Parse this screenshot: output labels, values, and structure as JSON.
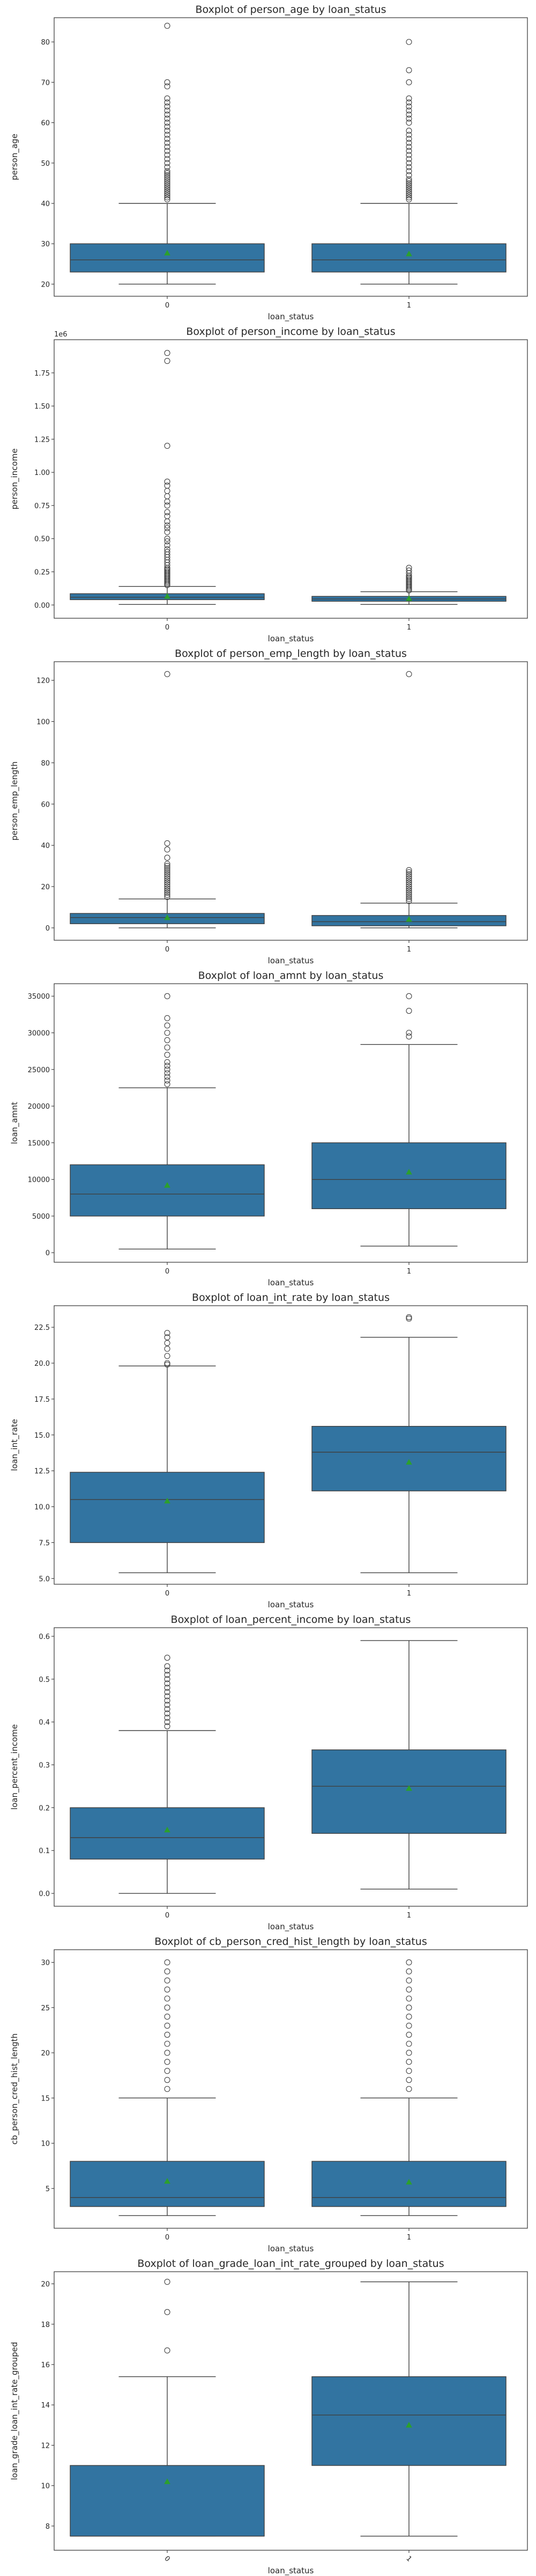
{
  "colors": {
    "box": "#3274a1",
    "mean": "#2ca02c",
    "line": "#404040",
    "frame": "#333333"
  },
  "chart_data": [
    {
      "type": "boxplot",
      "title": "Boxplot of person_age by loan_status",
      "xlabel": "loan_status",
      "ylabel": "person_age",
      "categories": [
        "0",
        "1"
      ],
      "ylim": [
        17,
        86
      ],
      "yticks": [
        20,
        30,
        40,
        50,
        60,
        70,
        80
      ],
      "ytick_labels": [
        "20",
        "30",
        "40",
        "50",
        "60",
        "70",
        "80"
      ],
      "boxes": [
        {
          "q1": 23,
          "median": 26,
          "q3": 30,
          "whislo": 20,
          "whishi": 40,
          "mean": 27.7,
          "fliers": [
            41,
            41.5,
            42,
            42.5,
            43,
            43.5,
            44,
            44.5,
            45,
            45.5,
            46,
            46.5,
            47,
            47.5,
            48,
            49,
            50,
            51,
            52,
            53,
            54,
            55,
            56,
            57,
            58,
            59,
            60,
            61,
            62,
            63,
            64,
            65,
            66,
            69,
            70,
            84
          ]
        },
        {
          "q1": 23,
          "median": 26,
          "q3": 30,
          "whislo": 20,
          "whishi": 40,
          "mean": 27.5,
          "fliers": [
            41,
            41.5,
            42,
            42.5,
            43,
            43.5,
            44,
            44.5,
            45,
            45.5,
            46,
            47,
            48,
            49,
            50,
            51,
            52,
            53,
            54,
            55,
            56,
            57,
            58,
            60,
            61,
            62,
            63,
            64,
            65,
            66,
            70,
            73,
            80
          ]
        }
      ]
    },
    {
      "type": "boxplot",
      "title": "Boxplot of person_income by loan_status",
      "xlabel": "loan_status",
      "ylabel": "person_income",
      "offset_label": "1e6",
      "categories": [
        "0",
        "1"
      ],
      "ylim": [
        -0.1,
        2.0
      ],
      "yticks": [
        0,
        0.25,
        0.5,
        0.75,
        1.0,
        1.25,
        1.5,
        1.75
      ],
      "ytick_labels": [
        "0.00",
        "0.25",
        "0.50",
        "0.75",
        "1.00",
        "1.25",
        "1.50",
        "1.75"
      ],
      "boxes": [
        {
          "q1": 0.04,
          "median": 0.058,
          "q3": 0.085,
          "whislo": 0.004,
          "whishi": 0.14,
          "mean": 0.066,
          "fliers": [
            0.15,
            0.16,
            0.17,
            0.18,
            0.19,
            0.2,
            0.21,
            0.22,
            0.23,
            0.24,
            0.25,
            0.26,
            0.27,
            0.28,
            0.3,
            0.32,
            0.34,
            0.36,
            0.38,
            0.4,
            0.42,
            0.45,
            0.48,
            0.5,
            0.55,
            0.58,
            0.6,
            0.63,
            0.67,
            0.7,
            0.75,
            0.78,
            0.82,
            0.86,
            0.9,
            0.93,
            1.2,
            1.84,
            1.9
          ]
        },
        {
          "q1": 0.028,
          "median": 0.045,
          "q3": 0.065,
          "whislo": 0.004,
          "whishi": 0.1,
          "mean": 0.049,
          "fliers": [
            0.11,
            0.12,
            0.13,
            0.14,
            0.15,
            0.16,
            0.17,
            0.18,
            0.19,
            0.2,
            0.21,
            0.22,
            0.24,
            0.26,
            0.28
          ]
        }
      ]
    },
    {
      "type": "boxplot",
      "title": "Boxplot of person_emp_length by loan_status",
      "xlabel": "loan_status",
      "ylabel": "person_emp_length",
      "categories": [
        "0",
        "1"
      ],
      "ylim": [
        -6,
        129
      ],
      "yticks": [
        0,
        20,
        40,
        60,
        80,
        100,
        120
      ],
      "ytick_labels": [
        "0",
        "20",
        "40",
        "60",
        "80",
        "100",
        "120"
      ],
      "boxes": [
        {
          "q1": 2,
          "median": 5,
          "q3": 7,
          "whislo": 0,
          "whishi": 14,
          "mean": 4.97,
          "fliers": [
            15,
            16,
            17,
            18,
            19,
            20,
            21,
            22,
            23,
            24,
            25,
            26,
            27,
            28,
            29,
            30,
            31,
            34,
            38,
            41,
            123
          ]
        },
        {
          "q1": 1,
          "median": 3,
          "q3": 6,
          "whislo": 0,
          "whishi": 12,
          "mean": 4.14,
          "fliers": [
            13,
            14,
            15,
            16,
            17,
            18,
            19,
            20,
            21,
            22,
            23,
            24,
            25,
            26,
            27,
            28,
            123
          ]
        }
      ]
    },
    {
      "type": "boxplot",
      "title": "Boxplot of loan_amnt by loan_status",
      "xlabel": "loan_status",
      "ylabel": "loan_amnt",
      "categories": [
        "0",
        "1"
      ],
      "ylim": [
        -1300,
        36700
      ],
      "yticks": [
        0,
        5000,
        10000,
        15000,
        20000,
        25000,
        30000,
        35000
      ],
      "ytick_labels": [
        "0",
        "5000",
        "10000",
        "15000",
        "20000",
        "25000",
        "30000",
        "35000"
      ],
      "boxes": [
        {
          "q1": 5000,
          "median": 8000,
          "q3": 12000,
          "whislo": 500,
          "whishi": 22500,
          "mean": 9200,
          "fliers": [
            23000,
            23500,
            24000,
            24500,
            25000,
            25500,
            26000,
            27000,
            28000,
            29000,
            30000,
            31000,
            32000,
            35000
          ]
        },
        {
          "q1": 6000,
          "median": 10000,
          "q3": 15000,
          "whislo": 900,
          "whishi": 28400,
          "mean": 11000,
          "fliers": [
            29500,
            30000,
            33000,
            35000
          ]
        }
      ]
    },
    {
      "type": "boxplot",
      "title": "Boxplot of loan_int_rate by loan_status",
      "xlabel": "loan_status",
      "ylabel": "loan_int_rate",
      "categories": [
        "0",
        "1"
      ],
      "ylim": [
        4.6,
        24.0
      ],
      "yticks": [
        5.0,
        7.5,
        10.0,
        12.5,
        15.0,
        17.5,
        20.0,
        22.5
      ],
      "ytick_labels": [
        "5.0",
        "7.5",
        "10.0",
        "12.5",
        "15.0",
        "17.5",
        "20.0",
        "22.5"
      ],
      "boxes": [
        {
          "q1": 7.5,
          "median": 10.5,
          "q3": 12.4,
          "whislo": 5.4,
          "whishi": 19.8,
          "mean": 10.4,
          "fliers": [
            19.9,
            20.0,
            20.5,
            21.0,
            21.4,
            21.8,
            22.1
          ]
        },
        {
          "q1": 11.1,
          "median": 13.8,
          "q3": 15.6,
          "whislo": 5.4,
          "whishi": 21.8,
          "mean": 13.1,
          "fliers": [
            23.1,
            23.2
          ]
        }
      ]
    },
    {
      "type": "boxplot",
      "title": "Boxplot of loan_percent_income by loan_status",
      "xlabel": "loan_status",
      "ylabel": "loan_percent_income",
      "categories": [
        "0",
        "1"
      ],
      "ylim": [
        -0.03,
        0.62
      ],
      "yticks": [
        0.0,
        0.1,
        0.2,
        0.3,
        0.4,
        0.5,
        0.6
      ],
      "ytick_labels": [
        "0.0",
        "0.1",
        "0.2",
        "0.3",
        "0.4",
        "0.5",
        "0.6"
      ],
      "boxes": [
        {
          "q1": 0.08,
          "median": 0.13,
          "q3": 0.2,
          "whislo": 0.0,
          "whishi": 0.38,
          "mean": 0.148,
          "fliers": [
            0.39,
            0.4,
            0.41,
            0.42,
            0.43,
            0.44,
            0.45,
            0.46,
            0.47,
            0.48,
            0.49,
            0.5,
            0.51,
            0.52,
            0.53,
            0.55
          ]
        },
        {
          "q1": 0.14,
          "median": 0.25,
          "q3": 0.335,
          "whislo": 0.01,
          "whishi": 0.59,
          "mean": 0.245,
          "fliers": []
        }
      ]
    },
    {
      "type": "boxplot",
      "title": "Boxplot of cb_person_cred_hist_length by loan_status",
      "xlabel": "loan_status",
      "ylabel": "cb_person_cred_hist_length",
      "categories": [
        "0",
        "1"
      ],
      "ylim": [
        0.6,
        31.4
      ],
      "yticks": [
        5,
        10,
        15,
        20,
        25,
        30
      ],
      "ytick_labels": [
        "5",
        "10",
        "15",
        "20",
        "25",
        "30"
      ],
      "boxes": [
        {
          "q1": 3,
          "median": 4,
          "q3": 8,
          "whislo": 2,
          "whishi": 15,
          "mean": 5.8,
          "fliers": [
            16,
            17,
            18,
            19,
            20,
            21,
            22,
            23,
            24,
            25,
            26,
            27,
            28,
            29,
            30
          ]
        },
        {
          "q1": 3,
          "median": 4,
          "q3": 8,
          "whislo": 2,
          "whishi": 15,
          "mean": 5.7,
          "fliers": [
            16,
            17,
            18,
            19,
            20,
            21,
            22,
            23,
            24,
            25,
            26,
            27,
            28,
            29,
            30
          ]
        }
      ]
    },
    {
      "type": "boxplot",
      "title": "Boxplot of loan_grade_loan_int_rate_grouped by loan_status",
      "xlabel": "loan_status",
      "ylabel": "loan_grade_loan_int_rate_grouped",
      "categories": [
        "0",
        "1"
      ],
      "xtick_rotation": 45,
      "ylim": [
        6.8,
        20.6
      ],
      "yticks": [
        8,
        10,
        12,
        14,
        16,
        18,
        20
      ],
      "ytick_labels": [
        "8",
        "10",
        "12",
        "14",
        "16",
        "18",
        "20"
      ],
      "boxes": [
        {
          "q1": 7.5,
          "median": 7.5,
          "q3": 11.0,
          "whislo": 7.5,
          "whishi": 15.4,
          "mean": 10.2,
          "fliers": [
            16.7,
            18.6,
            20.1
          ]
        },
        {
          "q1": 11.0,
          "median": 13.5,
          "q3": 15.4,
          "whislo": 7.5,
          "whishi": 20.1,
          "mean": 13.0,
          "fliers": []
        }
      ]
    }
  ]
}
